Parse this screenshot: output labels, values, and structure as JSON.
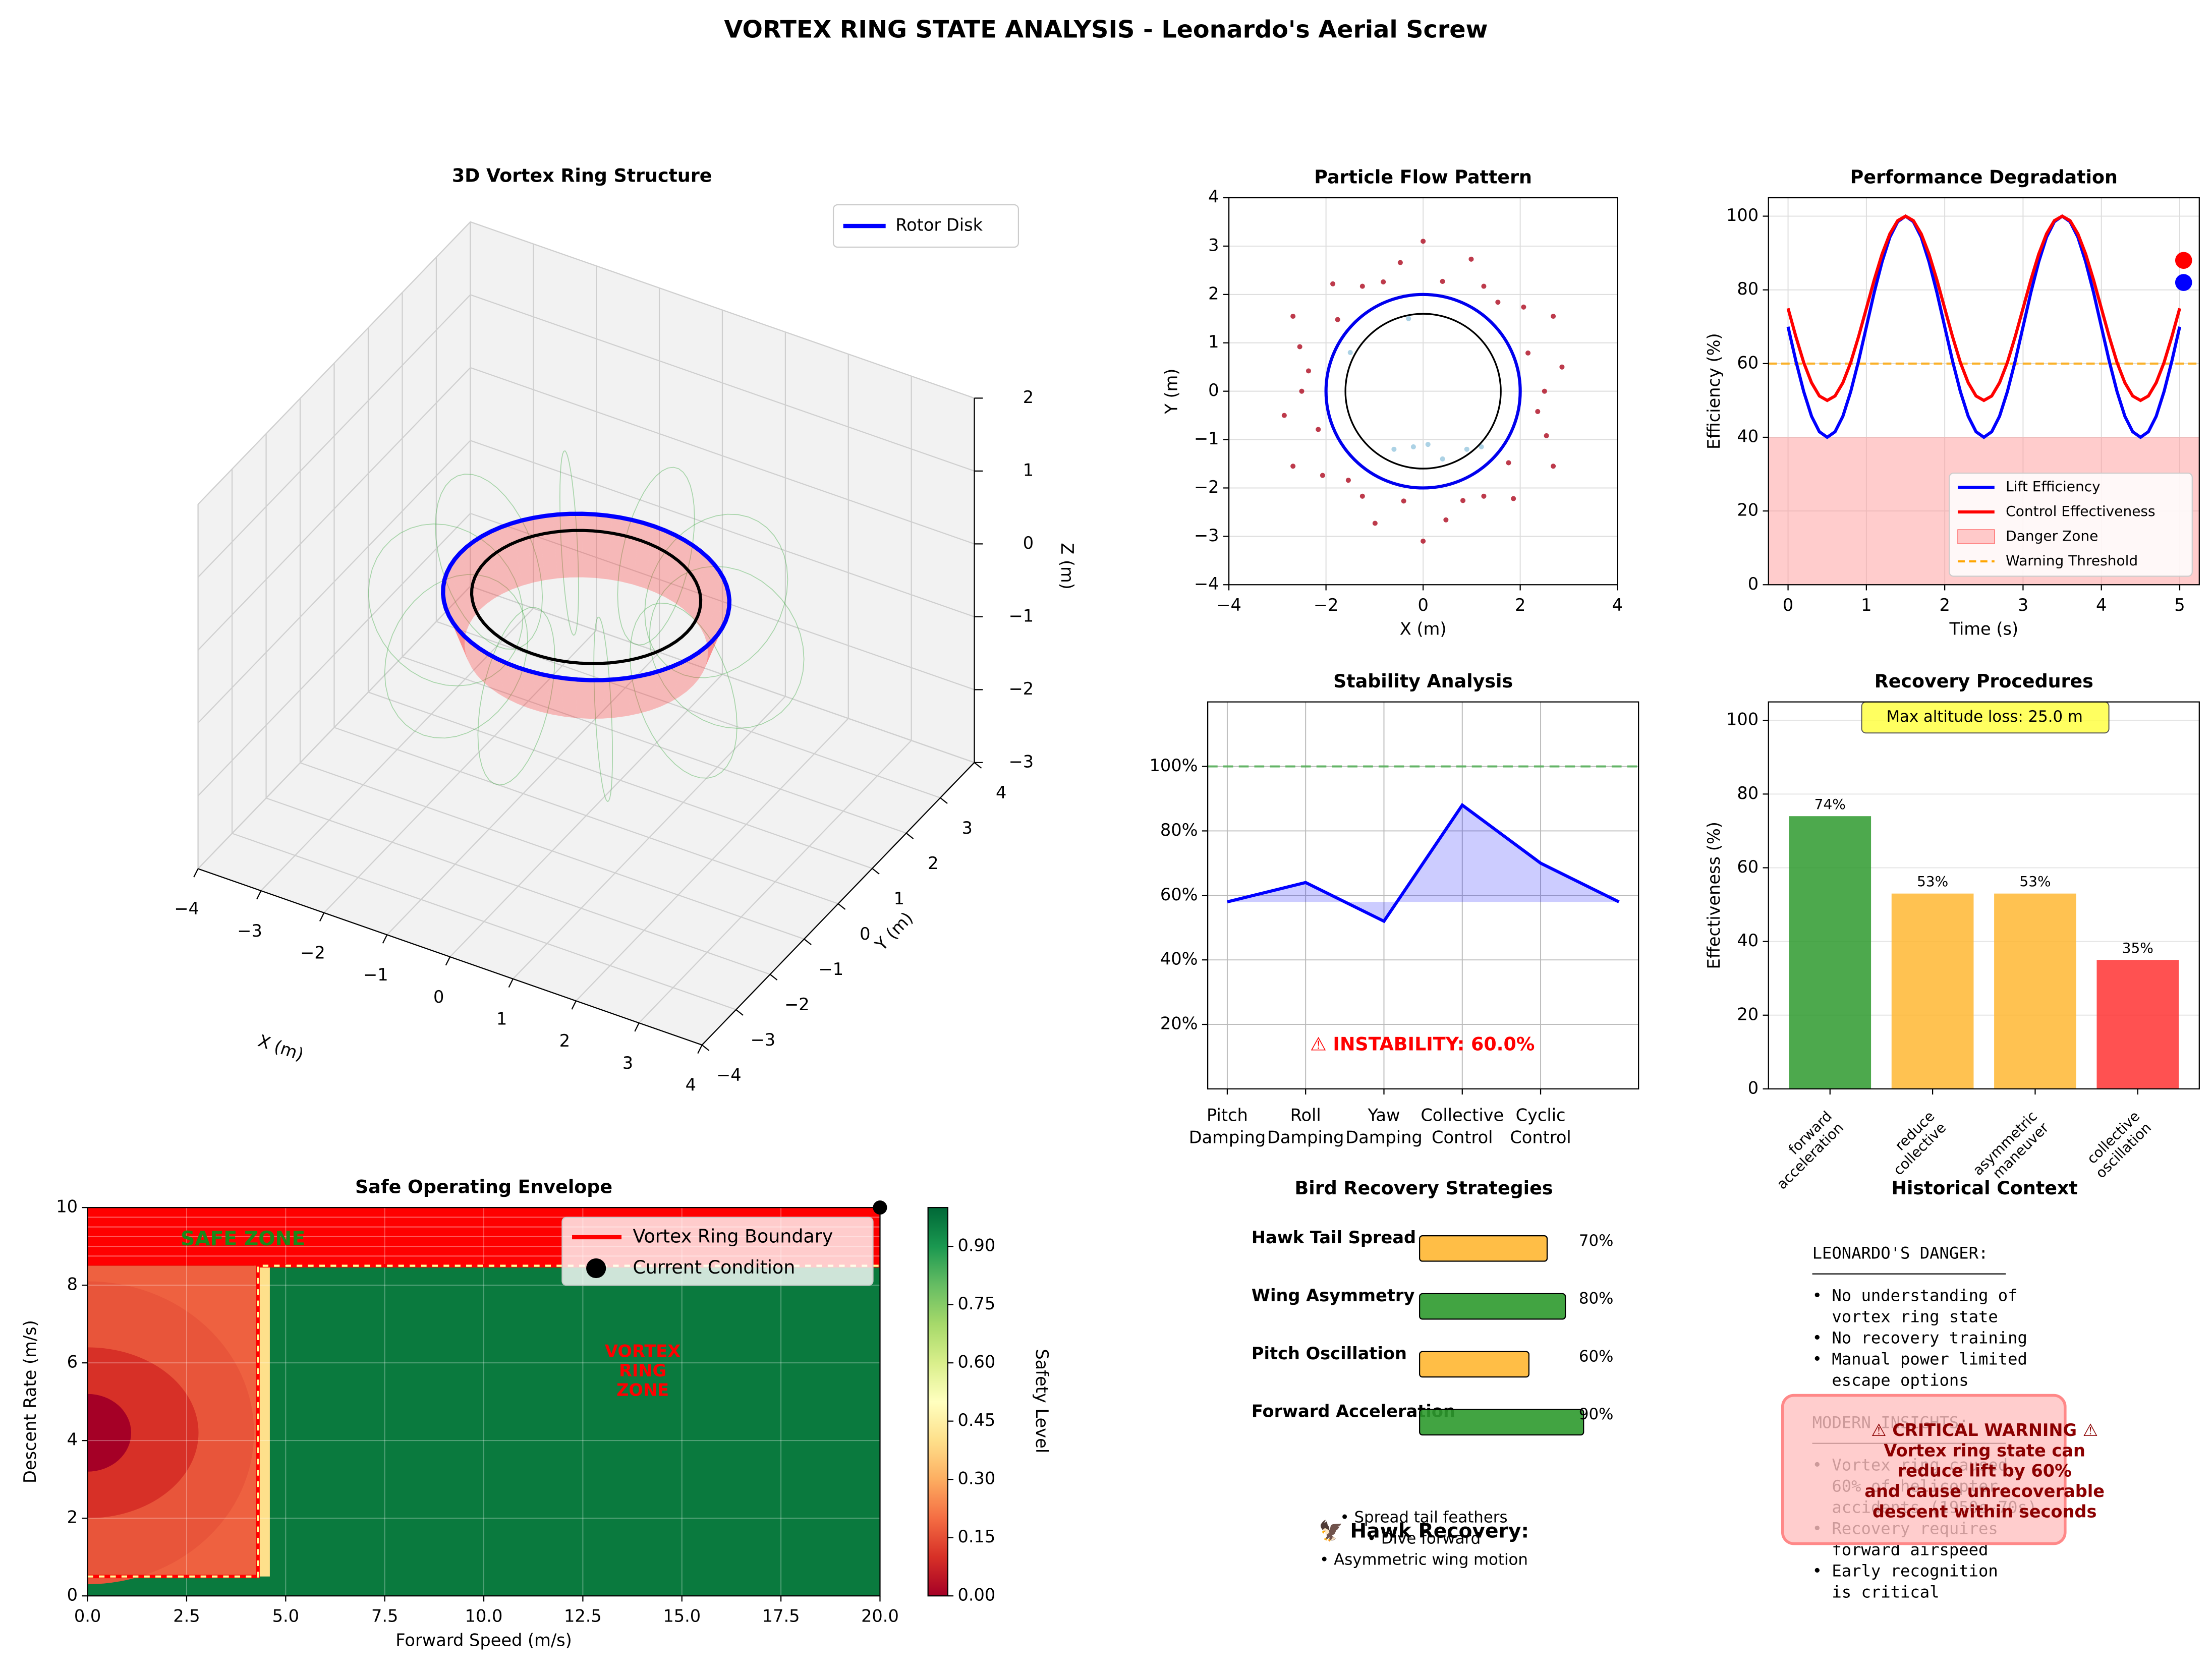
{
  "title": "VORTEX RING STATE ANALYSIS - Leonardo's Aerial Screw",
  "chart_data": [
    {
      "type": "ring3d",
      "title": "3D Vortex Ring Structure",
      "xlabel": "X (m)",
      "ylabel": "Y (m)",
      "zlabel": "Z (m)",
      "xlim": [
        -4,
        4
      ],
      "ylim": [
        -4,
        4
      ],
      "zlim": [
        -3,
        2
      ],
      "xticks": [
        {
          "value": -4,
          "label": "−4"
        },
        {
          "value": -3,
          "label": "−3"
        },
        {
          "value": -2,
          "label": "−2"
        },
        {
          "value": -1,
          "label": "−1"
        },
        0,
        1,
        2,
        3,
        4
      ],
      "yticks": [
        {
          "value": -4,
          "label": "−4"
        },
        {
          "value": -3,
          "label": "−3"
        },
        {
          "value": -2,
          "label": "−2"
        },
        {
          "value": -1,
          "label": "−1"
        },
        0,
        1,
        2,
        3,
        4
      ],
      "zticks": [
        {
          "value": -3,
          "label": "−3"
        },
        {
          "value": -2,
          "label": "−2"
        },
        {
          "value": -1,
          "label": "−1"
        },
        0,
        1,
        2
      ],
      "rings": [
        {
          "name": "Rotor Disk",
          "radius": 2,
          "z": 0,
          "color": "#0000ff"
        },
        {
          "radius": 1.6,
          "z": 0,
          "color": "#000000"
        }
      ],
      "vortex_sheet": {
        "radius": 2,
        "z": [
          -0.7,
          0
        ],
        "color": "#ff3333"
      }
    },
    {
      "type": "scatter",
      "title": "Particle Flow Pattern",
      "xlabel": "X (m)",
      "ylabel": "Y (m)",
      "xlim": [
        -4,
        4
      ],
      "ylim": [
        -4,
        4
      ],
      "grid": true,
      "xticks": [
        {
          "value": -4,
          "label": "−4"
        },
        {
          "value": -2,
          "label": "−2"
        },
        0,
        2,
        4
      ],
      "yticks": [
        {
          "value": -4,
          "label": "−4"
        },
        {
          "value": -3,
          "label": "−3"
        },
        {
          "value": -2,
          "label": "−2"
        },
        {
          "value": -1,
          "label": "−1"
        },
        0,
        1,
        2,
        3,
        4
      ],
      "circles": [
        {
          "radius": 2,
          "color": "#0000ee"
        },
        {
          "radius": 1.6,
          "color": "#000000"
        }
      ],
      "series": [
        {
          "color": "#b2182b",
          "x": [
            2.5,
            2.86,
            2.16,
            2.68,
            2.07,
            1.54,
            1.25,
            0.99,
            0.4,
            0,
            -0.47,
            -0.82,
            -1.25,
            -1.86,
            -1.76,
            -2.68,
            -2.54,
            -2.36,
            -2.5,
            -2.86,
            -2.16,
            -2.68,
            -2.07,
            -1.54,
            -1.25,
            -0.99,
            -0.4,
            0,
            0.47,
            0.82,
            1.25,
            1.86,
            1.76,
            2.68,
            2.54,
            2.36
          ],
          "y": [
            0,
            0.5,
            0.79,
            1.55,
            1.74,
            1.84,
            2.17,
            2.73,
            2.27,
            3.1,
            2.66,
            2.26,
            2.17,
            2.22,
            1.48,
            1.55,
            0.92,
            0.42,
            0,
            -0.5,
            -0.79,
            -1.55,
            -1.74,
            -1.84,
            -2.17,
            -2.73,
            -2.27,
            -3.1,
            -2.66,
            -2.26,
            -2.17,
            -2.22,
            -1.48,
            -1.55,
            -0.92,
            -0.42
          ]
        },
        {
          "color": "#9ecae1",
          "x": [
            -0.6,
            -0.2,
            0.4,
            0.9,
            1.2,
            -1.5,
            -0.3,
            0.1
          ],
          "y": [
            -1.2,
            -1.15,
            -1.4,
            -1.2,
            -1.15,
            0.8,
            1.5,
            -1.1
          ]
        }
      ]
    },
    {
      "type": "line",
      "title": "Performance Degradation",
      "xlabel": "Time (s)",
      "ylabel": "Efficiency (%)",
      "xlim": [
        -0.25,
        5.25
      ],
      "ylim": [
        0,
        105
      ],
      "xticks": [
        0,
        1,
        2,
        3,
        4,
        5
      ],
      "yticks": [
        0,
        20,
        40,
        60,
        80,
        100
      ],
      "grid": true,
      "legend": "lower right",
      "x": [
        0,
        0.1,
        0.2,
        0.3,
        0.4,
        0.5,
        0.6,
        0.7,
        0.8,
        0.9,
        1,
        1.1,
        1.2,
        1.3,
        1.4,
        1.5,
        1.6,
        1.7,
        1.8,
        1.9,
        2,
        2.1,
        2.2,
        2.3,
        2.4,
        2.5,
        2.6,
        2.7,
        2.8,
        2.9,
        3,
        3.1,
        3.2,
        3.3,
        3.4,
        3.5,
        3.6,
        3.7,
        3.8,
        3.9,
        4,
        4.1,
        4.2,
        4.3,
        4.4,
        4.5,
        4.6,
        4.7,
        4.8,
        4.9,
        5
      ],
      "series": [
        {
          "name": "Lift Efficiency",
          "color": "#0000ff",
          "values": [
            70,
            60.7,
            52.4,
            45.7,
            41.5,
            40,
            41.5,
            45.7,
            52.4,
            60.7,
            70,
            79.3,
            87.6,
            94.3,
            98.5,
            100,
            98.5,
            94.3,
            87.6,
            79.3,
            70,
            60.7,
            52.4,
            45.7,
            41.5,
            40,
            41.5,
            45.7,
            52.4,
            60.7,
            70,
            79.3,
            87.6,
            94.3,
            98.5,
            100,
            98.5,
            94.3,
            87.6,
            79.3,
            70,
            60.7,
            52.4,
            45.7,
            41.5,
            40,
            41.5,
            45.7,
            52.4,
            60.7,
            70
          ]
        },
        {
          "name": "Control Effectiveness",
          "color": "#ff0000",
          "values": [
            75,
            67.3,
            60.3,
            54.8,
            51.2,
            50,
            51.2,
            54.8,
            60.3,
            67.3,
            75,
            82.7,
            89.7,
            95.2,
            98.8,
            100,
            98.8,
            95.2,
            89.7,
            82.7,
            75,
            67.3,
            60.3,
            54.8,
            51.2,
            50,
            51.2,
            54.8,
            60.3,
            67.3,
            75,
            82.7,
            89.7,
            95.2,
            98.8,
            100,
            98.8,
            95.2,
            89.7,
            82.7,
            75,
            67.3,
            60.3,
            54.8,
            51.2,
            50,
            51.2,
            54.8,
            60.3,
            67.3,
            75
          ]
        }
      ],
      "danger_zone": {
        "name": "Danger Zone",
        "range": [
          0,
          40
        ],
        "color": "#ff9999"
      },
      "threshold": {
        "name": "Warning Threshold",
        "value": 60,
        "color": "#ffa500"
      },
      "markers": [
        {
          "x": 5.05,
          "y": 88,
          "color": "#ff0000"
        },
        {
          "x": 5.05,
          "y": 82,
          "color": "#0000ff"
        }
      ]
    },
    {
      "type": "area_line",
      "title": "Stability Analysis",
      "annotation": "⚠ INSTABILITY: 60.0%",
      "xlim": [
        -0.25,
        5.25
      ],
      "ylim": [
        0,
        120
      ],
      "grid": true,
      "xticks": [
        {
          "value": 0,
          "label": "Pitch\nDamping"
        },
        {
          "value": 1,
          "label": "Roll\nDamping"
        },
        {
          "value": 2,
          "label": "Yaw\nDamping"
        },
        {
          "value": 3,
          "label": "Collective\nControl"
        },
        {
          "value": 4,
          "label": "Cyclic\nControl"
        }
      ],
      "yticks": [
        {
          "value": 20,
          "label": "20%"
        },
        {
          "value": 40,
          "label": "40%"
        },
        {
          "value": 60,
          "label": "60%"
        },
        {
          "value": 80,
          "label": "80%"
        },
        {
          "value": 100,
          "label": "100%"
        }
      ],
      "x": [
        0,
        1,
        2,
        3,
        4,
        5
      ],
      "values": [
        58,
        64,
        52,
        88,
        70,
        58
      ],
      "color": "#0000ff",
      "reference": {
        "value": 100,
        "color": "#4caf50"
      }
    },
    {
      "type": "bar",
      "title": "Recovery Procedures",
      "ylabel": "Effectiveness (%)",
      "annotation": "Max altitude loss: 25.0 m",
      "categories": [
        "forward\nacceleration",
        "reduce\ncollective",
        "asymmetric\nmaneuver",
        "collective\noscillation"
      ],
      "values": [
        74,
        53,
        53,
        35
      ],
      "value_labels": [
        "74%",
        "53%",
        "53%",
        "35%"
      ],
      "colors": [
        "#2e9a2e",
        "#ffb732",
        "#ffb732",
        "#ff3333"
      ],
      "ylim": [
        0,
        105
      ],
      "yticks": [
        0,
        20,
        40,
        60,
        80,
        100
      ],
      "grid": true
    },
    {
      "type": "envelope",
      "title": "Safe Operating Envelope",
      "xlabel": "Forward Speed (m/s)",
      "ylabel": "Descent Rate (m/s)",
      "xlim": [
        0,
        20
      ],
      "ylim": [
        0,
        10
      ],
      "xticks": [
        {
          "value": 0,
          "label": "0.0"
        },
        2.5,
        {
          "value": 5,
          "label": "5.0"
        },
        7.5,
        {
          "value": 10,
          "label": "10.0"
        },
        12.5,
        {
          "value": 15,
          "label": "15.0"
        },
        17.5,
        {
          "value": 20,
          "label": "20.0"
        }
      ],
      "yticks": [
        0,
        2,
        4,
        6,
        8,
        10
      ],
      "grid": true,
      "legend": "upper right",
      "regions": [
        {
          "x": [
            0,
            20
          ],
          "y": [
            0,
            10
          ],
          "color": "#0a7a3e"
        },
        {
          "x": [
            0,
            20
          ],
          "y": [
            8.5,
            10
          ],
          "color": "#ff0000"
        },
        {
          "x": [
            4.2,
            4.6
          ],
          "y": [
            0.5,
            8.5
          ],
          "color": "#fee08b"
        },
        {
          "x": [
            0,
            4.3
          ],
          "y": [
            0.5,
            8.5
          ],
          "color": "#ee6140"
        },
        {
          "cx": 0,
          "cy": 4.2,
          "rx": 4.2,
          "ry": 3.9,
          "color": "#e8553a"
        },
        {
          "cx": 0,
          "cy": 4.2,
          "rx": 2.8,
          "ry": 2.2,
          "color": "#d73027"
        },
        {
          "cx": 0,
          "cy": 4.2,
          "rx": 1.1,
          "ry": 1.0,
          "color": "#a50026"
        }
      ],
      "boundary": {
        "name": "Vortex Ring Boundary",
        "x": [
          0,
          4.3,
          4.3,
          20
        ],
        "y": [
          0.5,
          0.5,
          8.5,
          8.5
        ],
        "color": "#ff0000"
      },
      "current": {
        "name": "Current Condition",
        "x": 20,
        "y": 10,
        "color": "#000000"
      },
      "zones": [
        {
          "label": "SAFE ZONE",
          "color": "#1a8a1a"
        },
        {
          "label": "VORTEX\nRING\nZONE",
          "color": "#ff0000"
        }
      ],
      "colorbar": {
        "label": "Safety Level",
        "colormap": "RdYlGn",
        "lim": [
          0,
          1
        ],
        "ticks": [
          {
            "value": 0,
            "label": "0.00"
          },
          0.15,
          {
            "value": 0.3,
            "label": "0.30"
          },
          0.45,
          {
            "value": 0.6,
            "label": "0.60"
          },
          0.75,
          {
            "value": 0.9,
            "label": "0.90"
          }
        ]
      }
    },
    {
      "type": "hbar",
      "title": "Bird Recovery Strategies",
      "categories": [
        "Hawk Tail Spread",
        "Wing Asymmetry",
        "Pitch Oscillation",
        "Forward Acceleration"
      ],
      "values": [
        70,
        80,
        60,
        90
      ],
      "value_labels": [
        "70%",
        "80%",
        "60%",
        "90%"
      ],
      "colors": [
        "#ffb732",
        "#2e9a2e",
        "#ffb732",
        "#2e9a2e"
      ],
      "hawk": {
        "title": "🦅 Hawk Recovery:",
        "items": [
          "• Spread tail feathers",
          "• Dive forward",
          "• Asymmetric wing motion"
        ]
      }
    },
    {
      "type": "text",
      "title": "Historical Context",
      "sections": [
        {
          "heading": "LEONARDO'S DANGER:",
          "lines": [
            "• No understanding of",
            "  vortex ring state",
            "• No recovery training",
            "• Manual power limited",
            "  escape options"
          ]
        },
        {
          "heading": "MODERN INSIGHTS:",
          "lines": [
            "• Vortex ring caused",
            "  60% of helicopter",
            "  accidents (1950s-70s)",
            "• Recovery requires",
            "  forward airspeed",
            "• Early recognition",
            "  is critical"
          ]
        }
      ],
      "warning": "⚠ CRITICAL WARNING ⚠\nVortex ring state can\nreduce lift by 60%\nand cause unrecoverable\ndescent within seconds"
    }
  ]
}
